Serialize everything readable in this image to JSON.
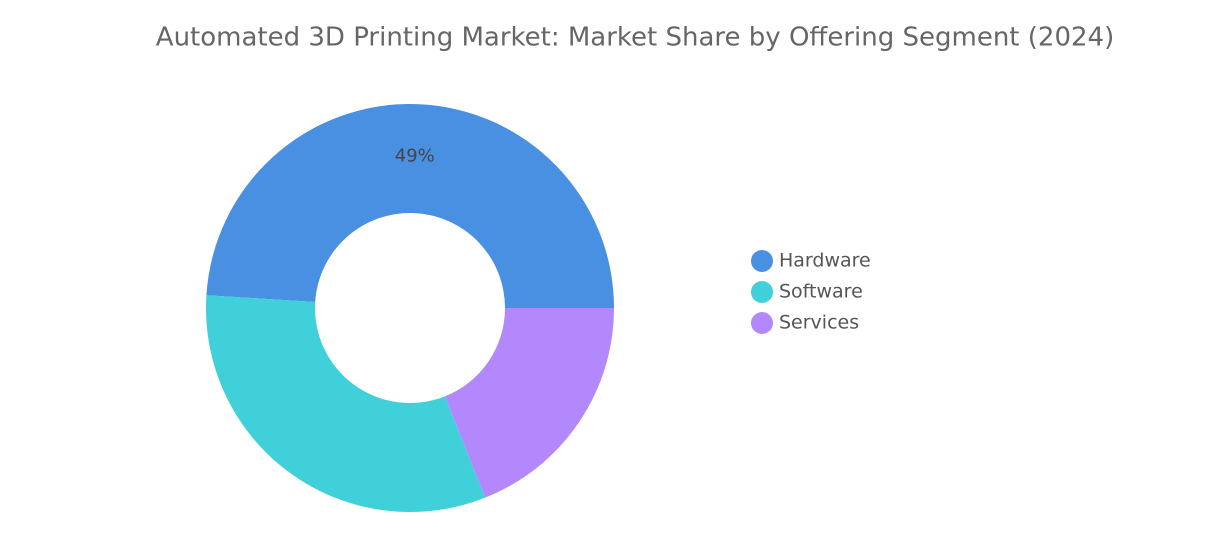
{
  "chart_data": {
    "type": "donut",
    "title": "Automated 3D Printing Market: Market Share by Offering Segment (2024)",
    "categories": [
      "Hardware",
      "Software",
      "Services"
    ],
    "values": [
      49,
      32,
      19
    ],
    "value_labels": [
      "49%",
      null,
      null
    ],
    "colors": [
      "#4a90e2",
      "#40d0da",
      "#b388fd"
    ],
    "legend": "right"
  }
}
